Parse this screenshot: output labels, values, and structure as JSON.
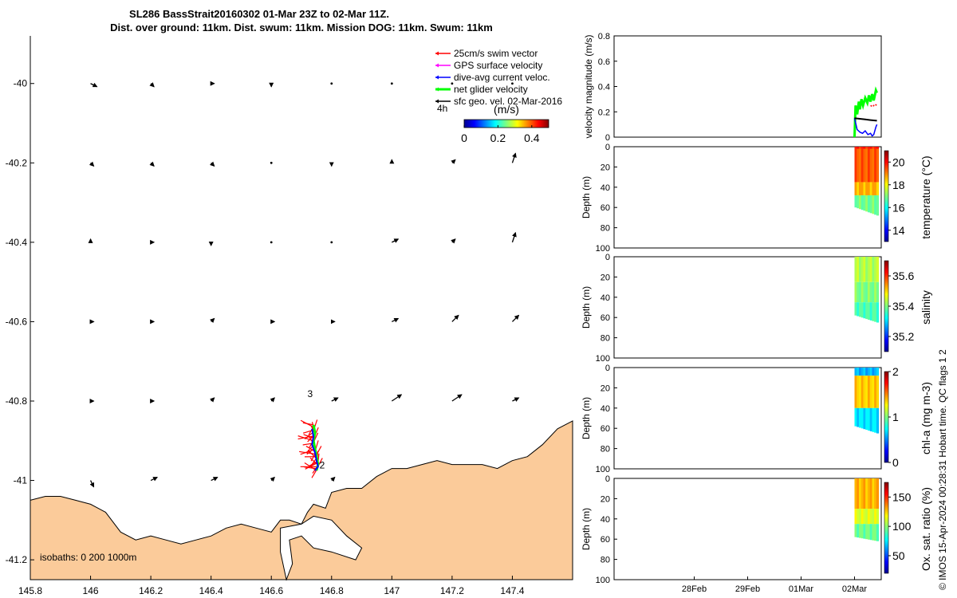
{
  "title": {
    "line1": "SL286 BassStrait20160302 01-Mar 23Z to 02-Mar 11Z.",
    "line2": "Dist. over ground: 11km. Dist. swum: 11km. Mission DOG: 11km. Swum: 11km"
  },
  "colors": {
    "land": "#fbcb9a",
    "swim_vector": "#ff0000",
    "gps_velocity": "#ff00ff",
    "current_velocity": "#0000ff",
    "net_velocity": "#00ff00",
    "geo_velocity": "#000000"
  },
  "credit": "© IMOS 15-Apr-2024 00:28:31 Hobart time. QC flags 1  2",
  "chart_data": [
    {
      "id": "map",
      "type": "scatter",
      "xlim": [
        145.8,
        147.6
      ],
      "ylim": [
        -41.25,
        -39.88
      ],
      "xticks": [
        145.8,
        146,
        146.2,
        146.4,
        146.6,
        146.8,
        147,
        147.2,
        147.4
      ],
      "xtick_labels": [
        "145.8",
        "146",
        "146.2",
        "146.4",
        "146.6",
        "146.8",
        "147",
        "147.2",
        "147.4"
      ],
      "yticks": [
        -40,
        -40.2,
        -40.4,
        -40.6,
        -40.8,
        -41,
        -41.2
      ],
      "ytick_labels": [
        "-40",
        "-40.2",
        "-40.4",
        "-40.6",
        "-40.8",
        "-41",
        "-41.2"
      ],
      "legend": {
        "placement": "top-right",
        "entries": [
          {
            "label": "25cm/s swim vector",
            "color": "#ff0000"
          },
          {
            "label": "GPS surface velocity",
            "color": "#ff00ff"
          },
          {
            "label": "dive-avg current veloc.",
            "color": "#0000ff"
          },
          {
            "label": "net glider velocity",
            "color": "#00ff00"
          },
          {
            "label": "sfc geo. vel. 02-Mar-2016",
            "color": "#000000"
          }
        ],
        "interval_label": "4h"
      },
      "colorbar": {
        "label": "(m/s)",
        "range": [
          0,
          0.5
        ],
        "ticks": [
          0,
          0.2,
          0.4
        ],
        "tick_labels": [
          "0",
          "0.2",
          "0.4"
        ]
      },
      "isobaths_label": "isobaths: 0   200  1000m",
      "day_labels": [
        {
          "text": "3",
          "lon": 146.72,
          "lat": -40.79
        },
        {
          "text": "2",
          "lon": 146.76,
          "lat": -40.97
        }
      ],
      "coastline": [
        [
          145.8,
          -41.05
        ],
        [
          145.85,
          -41.04
        ],
        [
          145.9,
          -41.04
        ],
        [
          145.95,
          -41.05
        ],
        [
          146.0,
          -41.06
        ],
        [
          146.05,
          -41.08
        ],
        [
          146.1,
          -41.13
        ],
        [
          146.15,
          -41.15
        ],
        [
          146.2,
          -41.14
        ],
        [
          146.25,
          -41.15
        ],
        [
          146.3,
          -41.16
        ],
        [
          146.35,
          -41.15
        ],
        [
          146.4,
          -41.14
        ],
        [
          146.45,
          -41.12
        ],
        [
          146.5,
          -41.11
        ],
        [
          146.55,
          -41.12
        ],
        [
          146.6,
          -41.13
        ],
        [
          146.63,
          -41.1
        ],
        [
          146.66,
          -41.1
        ],
        [
          146.7,
          -41.11
        ],
        [
          146.72,
          -41.08
        ],
        [
          146.74,
          -41.06
        ],
        [
          146.78,
          -41.07
        ],
        [
          146.8,
          -41.03
        ],
        [
          146.85,
          -41.02
        ],
        [
          146.9,
          -41.02
        ],
        [
          146.95,
          -40.99
        ],
        [
          147.0,
          -40.97
        ],
        [
          147.05,
          -40.97
        ],
        [
          147.1,
          -40.96
        ],
        [
          147.15,
          -40.95
        ],
        [
          147.2,
          -40.96
        ],
        [
          147.25,
          -40.96
        ],
        [
          147.3,
          -40.96
        ],
        [
          147.35,
          -40.97
        ],
        [
          147.4,
          -40.95
        ],
        [
          147.45,
          -40.94
        ],
        [
          147.5,
          -40.91
        ],
        [
          147.55,
          -40.87
        ],
        [
          147.6,
          -40.85
        ]
      ],
      "inlet": [
        [
          146.63,
          -41.12
        ],
        [
          146.63,
          -41.18
        ],
        [
          146.65,
          -41.25
        ],
        [
          146.67,
          -41.21
        ],
        [
          146.66,
          -41.15
        ],
        [
          146.7,
          -41.14
        ],
        [
          146.74,
          -41.17
        ],
        [
          146.8,
          -41.18
        ],
        [
          146.88,
          -41.2
        ],
        [
          146.9,
          -41.17
        ],
        [
          146.85,
          -41.14
        ],
        [
          146.8,
          -41.1
        ],
        [
          146.74,
          -41.09
        ],
        [
          146.7,
          -41.11
        ]
      ],
      "geo_arrows": [
        {
          "lon": 146.0,
          "lat": -40.0,
          "u": 0.02,
          "v": -0.01
        },
        {
          "lon": 146.2,
          "lat": -40.0,
          "u": 0.01,
          "v": -0.01
        },
        {
          "lon": 146.4,
          "lat": -40.0,
          "u": 0.01,
          "v": 0.0
        },
        {
          "lon": 146.6,
          "lat": -40.0,
          "u": 0.0,
          "v": -0.01
        },
        {
          "lon": 146.8,
          "lat": -40.0,
          "u": 0.0,
          "v": 0.0
        },
        {
          "lon": 147.0,
          "lat": -40.0,
          "u": 0.0,
          "v": 0.0
        },
        {
          "lon": 147.2,
          "lat": -40.0,
          "u": 0.0,
          "v": 0.0
        },
        {
          "lon": 147.4,
          "lat": -40.0,
          "u": 0.0,
          "v": 0.0
        },
        {
          "lon": 146.0,
          "lat": -40.2,
          "u": 0.01,
          "v": -0.01
        },
        {
          "lon": 146.2,
          "lat": -40.2,
          "u": 0.01,
          "v": -0.01
        },
        {
          "lon": 146.4,
          "lat": -40.2,
          "u": 0.01,
          "v": -0.01
        },
        {
          "lon": 146.6,
          "lat": -40.2,
          "u": 0.0,
          "v": 0.0
        },
        {
          "lon": 146.8,
          "lat": -40.2,
          "u": 0.0,
          "v": -0.01
        },
        {
          "lon": 147.0,
          "lat": -40.2,
          "u": 0.0,
          "v": 0.01
        },
        {
          "lon": 147.2,
          "lat": -40.2,
          "u": 0.01,
          "v": 0.01
        },
        {
          "lon": 147.4,
          "lat": -40.2,
          "u": 0.01,
          "v": 0.03
        },
        {
          "lon": 146.0,
          "lat": -40.4,
          "u": 0.0,
          "v": 0.01
        },
        {
          "lon": 146.2,
          "lat": -40.4,
          "u": 0.01,
          "v": 0.0
        },
        {
          "lon": 146.4,
          "lat": -40.4,
          "u": 0.0,
          "v": -0.01
        },
        {
          "lon": 146.6,
          "lat": -40.4,
          "u": 0.0,
          "v": 0.0
        },
        {
          "lon": 146.8,
          "lat": -40.4,
          "u": 0.0,
          "v": 0.0
        },
        {
          "lon": 147.0,
          "lat": -40.4,
          "u": 0.02,
          "v": 0.01
        },
        {
          "lon": 147.2,
          "lat": -40.4,
          "u": 0.01,
          "v": 0.01
        },
        {
          "lon": 147.4,
          "lat": -40.4,
          "u": 0.01,
          "v": 0.03
        },
        {
          "lon": 146.0,
          "lat": -40.6,
          "u": 0.01,
          "v": 0.0
        },
        {
          "lon": 146.2,
          "lat": -40.6,
          "u": 0.01,
          "v": 0.0
        },
        {
          "lon": 146.4,
          "lat": -40.6,
          "u": 0.01,
          "v": 0.01
        },
        {
          "lon": 146.6,
          "lat": -40.6,
          "u": 0.01,
          "v": 0.0
        },
        {
          "lon": 146.8,
          "lat": -40.6,
          "u": 0.01,
          "v": 0.0
        },
        {
          "lon": 147.0,
          "lat": -40.6,
          "u": 0.02,
          "v": 0.01
        },
        {
          "lon": 147.2,
          "lat": -40.6,
          "u": 0.02,
          "v": 0.02
        },
        {
          "lon": 147.4,
          "lat": -40.6,
          "u": 0.02,
          "v": 0.02
        },
        {
          "lon": 146.0,
          "lat": -40.8,
          "u": 0.01,
          "v": 0.0
        },
        {
          "lon": 146.2,
          "lat": -40.8,
          "u": 0.01,
          "v": 0.0
        },
        {
          "lon": 146.4,
          "lat": -40.8,
          "u": 0.01,
          "v": 0.01
        },
        {
          "lon": 146.6,
          "lat": -40.8,
          "u": 0.01,
          "v": 0.01
        },
        {
          "lon": 146.8,
          "lat": -40.8,
          "u": 0.02,
          "v": 0.01
        },
        {
          "lon": 147.0,
          "lat": -40.8,
          "u": 0.03,
          "v": 0.02
        },
        {
          "lon": 147.2,
          "lat": -40.8,
          "u": 0.03,
          "v": 0.02
        },
        {
          "lon": 147.4,
          "lat": -40.8,
          "u": 0.02,
          "v": 0.01
        },
        {
          "lon": 146.0,
          "lat": -41.0,
          "u": 0.01,
          "v": -0.02
        },
        {
          "lon": 146.2,
          "lat": -41.0,
          "u": 0.02,
          "v": 0.01
        },
        {
          "lon": 146.4,
          "lat": -41.0,
          "u": 0.02,
          "v": 0.01
        },
        {
          "lon": 146.6,
          "lat": -41.0,
          "u": 0.01,
          "v": 0.01
        },
        {
          "lon": 146.8,
          "lat": -41.0,
          "u": 0.01,
          "v": 0.01
        }
      ],
      "glider_track": [
        [
          146.74,
          -40.86
        ],
        [
          146.745,
          -40.88
        ],
        [
          146.74,
          -40.9
        ],
        [
          146.745,
          -40.92
        ],
        [
          146.75,
          -40.94
        ],
        [
          146.755,
          -40.96
        ],
        [
          146.75,
          -40.975
        ]
      ],
      "current_track": [
        [
          146.735,
          -40.87
        ],
        [
          146.74,
          -40.89
        ],
        [
          146.735,
          -40.91
        ],
        [
          146.745,
          -40.93
        ],
        [
          146.75,
          -40.95
        ],
        [
          146.755,
          -40.965
        ],
        [
          146.745,
          -40.975
        ]
      ]
    },
    {
      "id": "velocity",
      "type": "line",
      "ylabel": "velocity magnitude (m/s)",
      "ylim": [
        0,
        0.8
      ],
      "yticks": [
        0,
        0.2,
        0.4,
        0.6,
        0.8
      ],
      "ytick_labels": [
        "0",
        "0.2",
        "0.4",
        "0.6",
        "0.8"
      ],
      "xlim_days": [
        -4.5,
        0.5
      ],
      "series": [
        {
          "key": "net",
          "color": "#00ff00",
          "x": [
            0,
            0.02,
            0.05,
            0.08,
            0.1,
            0.13,
            0.16,
            0.2,
            0.24,
            0.27,
            0.3,
            0.33,
            0.36,
            0.4,
            0.42
          ],
          "values": [
            0.0,
            0.25,
            0.18,
            0.28,
            0.22,
            0.3,
            0.25,
            0.31,
            0.27,
            0.33,
            0.28,
            0.34,
            0.29,
            0.37,
            0.35
          ]
        },
        {
          "key": "current",
          "color": "#0000ff",
          "x": [
            0,
            0.05,
            0.1,
            0.15,
            0.2,
            0.25,
            0.3,
            0.33,
            0.36,
            0.4,
            0.42
          ],
          "values": [
            0.15,
            0.06,
            0.04,
            0.03,
            0.05,
            0.02,
            0.03,
            0.01,
            0.02,
            0.08,
            0.1
          ]
        },
        {
          "key": "geo",
          "color": "#000000",
          "x": [
            0,
            0.1,
            0.2,
            0.3,
            0.42
          ],
          "values": [
            0.15,
            0.145,
            0.14,
            0.135,
            0.13
          ]
        },
        {
          "key": "swim",
          "color": "#ff0000",
          "x": [
            0.3,
            0.34,
            0.38,
            0.42
          ],
          "values": [
            0.25,
            0.24,
            0.26,
            0.25
          ]
        }
      ]
    },
    {
      "id": "temperature",
      "type": "heatmap",
      "ylabel": "Depth (m)",
      "cbar_label": "temperature (°C)",
      "ylim": [
        0,
        100
      ],
      "yticks": [
        0,
        20,
        40,
        60,
        80,
        100
      ],
      "ytick_labels": [
        "0",
        "20",
        "40",
        "60",
        "80",
        "100"
      ],
      "cbar_range": [
        13,
        21
      ],
      "cbar_ticks": [
        14,
        16,
        18,
        20
      ],
      "cbar_tick_labels": [
        "14",
        "16",
        "18",
        "20"
      ],
      "profile_depth_start": 60,
      "profile_depth_end": 68,
      "cell_layers": [
        {
          "from": 0,
          "to": 2,
          "value": 19.8
        },
        {
          "from": 2,
          "to": 35,
          "value": 19.3
        },
        {
          "from": 35,
          "to": 48,
          "value": 18.6
        },
        {
          "from": 48,
          "to": 70,
          "value": 16.9
        }
      ]
    },
    {
      "id": "salinity",
      "type": "heatmap",
      "ylabel": "Depth (m)",
      "cbar_label": "salinity",
      "ylim": [
        0,
        100
      ],
      "yticks": [
        0,
        20,
        40,
        60,
        80,
        100
      ],
      "ytick_labels": [
        "0",
        "20",
        "40",
        "60",
        "80",
        "100"
      ],
      "cbar_range": [
        35.1,
        35.7
      ],
      "cbar_ticks": [
        35.2,
        35.4,
        35.6
      ],
      "cbar_tick_labels": [
        "35.2",
        "35.4",
        "35.6"
      ],
      "profile_depth_start": 58,
      "profile_depth_end": 65,
      "cell_layers": [
        {
          "from": 0,
          "to": 25,
          "value": 35.43
        },
        {
          "from": 25,
          "to": 45,
          "value": 35.4
        },
        {
          "from": 45,
          "to": 70,
          "value": 35.37
        }
      ]
    },
    {
      "id": "chla",
      "type": "heatmap",
      "ylabel": "Depth (m)",
      "cbar_label": "chl-a (mg m-3)",
      "ylim": [
        0,
        100
      ],
      "yticks": [
        0,
        20,
        40,
        60,
        80,
        100
      ],
      "ytick_labels": [
        "0",
        "20",
        "40",
        "60",
        "80",
        "100"
      ],
      "cbar_range": [
        0,
        2
      ],
      "cbar_ticks": [
        0,
        1,
        2
      ],
      "cbar_tick_labels": [
        "0",
        "1",
        "2"
      ],
      "profile_depth_start": 58,
      "profile_depth_end": 65,
      "cell_layers": [
        {
          "from": 0,
          "to": 8,
          "value": 0.6
        },
        {
          "from": 8,
          "to": 40,
          "value": 1.35
        },
        {
          "from": 40,
          "to": 70,
          "value": 0.7
        }
      ]
    },
    {
      "id": "oxygen",
      "type": "heatmap",
      "ylabel": "Depth (m)",
      "cbar_label": "Ox. sat. ratio (%)",
      "xtick_labels": [
        "28Feb",
        "29Feb",
        "01Mar",
        "02Mar"
      ],
      "xtick_days": [
        -3,
        -2,
        -1,
        0
      ],
      "ylim": [
        0,
        100
      ],
      "yticks": [
        0,
        20,
        40,
        60,
        80,
        100
      ],
      "ytick_labels": [
        "0",
        "20",
        "40",
        "60",
        "80",
        "100"
      ],
      "cbar_range": [
        20,
        175
      ],
      "cbar_ticks": [
        50,
        100,
        150
      ],
      "cbar_tick_labels": [
        "50",
        "100",
        "150"
      ],
      "profile_depth_start": 58,
      "profile_depth_end": 62,
      "cell_layers": [
        {
          "from": 0,
          "to": 30,
          "value": 128
        },
        {
          "from": 30,
          "to": 45,
          "value": 112
        },
        {
          "from": 45,
          "to": 70,
          "value": 95
        }
      ]
    }
  ]
}
